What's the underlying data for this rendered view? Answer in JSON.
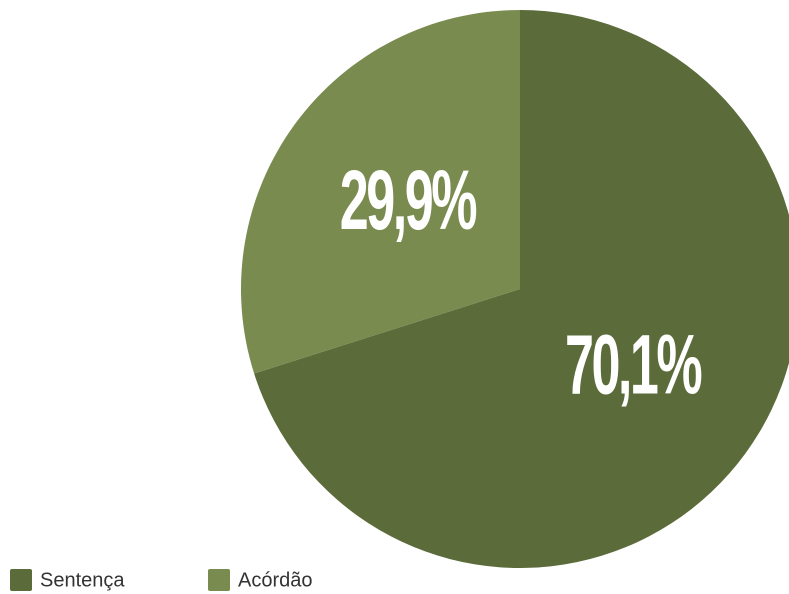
{
  "chart_data": {
    "type": "pie",
    "categories": [
      "Sentença",
      "Acórdão"
    ],
    "values": [
      70.1,
      29.9
    ],
    "value_labels": [
      "70,1%",
      "29,9%"
    ],
    "colors": [
      "#5b6b3a",
      "#7a8b4f"
    ]
  }
}
